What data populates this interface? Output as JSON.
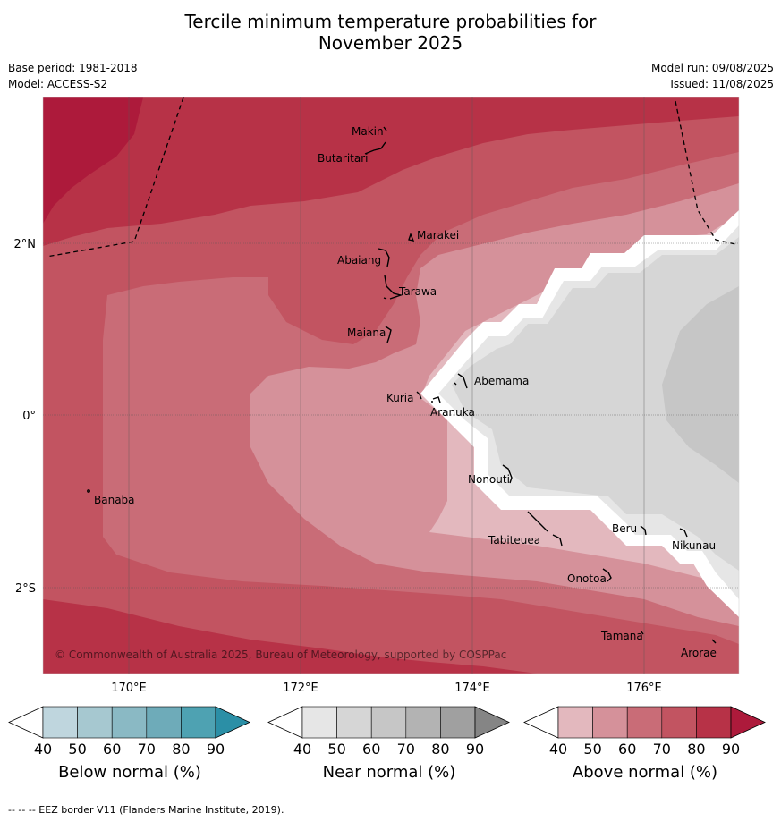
{
  "header": {
    "title_line1": "Tercile minimum temperature probabilities for",
    "title_line2": "November 2025",
    "base_period": "Base period: 1981-2018",
    "model": "Model: ACCESS-S2",
    "model_run": "Model run: 09/08/2025",
    "issued": "Issued: 11/08/2025"
  },
  "map": {
    "lat_labels": [
      "2°N",
      "0°",
      "2°S"
    ],
    "lon_labels": [
      "170°E",
      "172°E",
      "174°E",
      "176°E"
    ],
    "copyright": "© Commonwealth of Australia 2025, Bureau of Meteorology, supported by COSPPac",
    "islands": [
      "Makin",
      "Butaritari",
      "Marakei",
      "Abaiang",
      "Tarawa",
      "Maiana",
      "Abemama",
      "Kuria",
      "Aranuka",
      "Banaba",
      "Nonouti",
      "Beru",
      "Nikunau",
      "Tabiteuea",
      "Onotoa",
      "Tamana",
      "Arorae"
    ]
  },
  "colorbars": [
    {
      "title": "Below normal (%)",
      "ticks": [
        "40",
        "50",
        "60",
        "70",
        "80",
        "90"
      ],
      "colors": [
        "#bfd6de",
        "#a6c8d0",
        "#8ab9c4",
        "#6eabb9",
        "#4ea2b2",
        "#2b8fa6"
      ]
    },
    {
      "title": "Near normal (%)",
      "ticks": [
        "40",
        "50",
        "60",
        "70",
        "80",
        "90"
      ],
      "colors": [
        "#e6e6e6",
        "#d6d6d6",
        "#c6c6c6",
        "#b3b3b3",
        "#a0a0a0",
        "#858585"
      ]
    },
    {
      "title": "Above normal (%)",
      "ticks": [
        "40",
        "50",
        "60",
        "70",
        "80",
        "90"
      ],
      "colors": [
        "#e3b8be",
        "#d5919a",
        "#c96c77",
        "#c25461",
        "#b73247",
        "#ad1a3b"
      ]
    }
  ],
  "footer": "--  --  -- EEZ border V11 (Flanders Marine Institute, 2019)."
}
